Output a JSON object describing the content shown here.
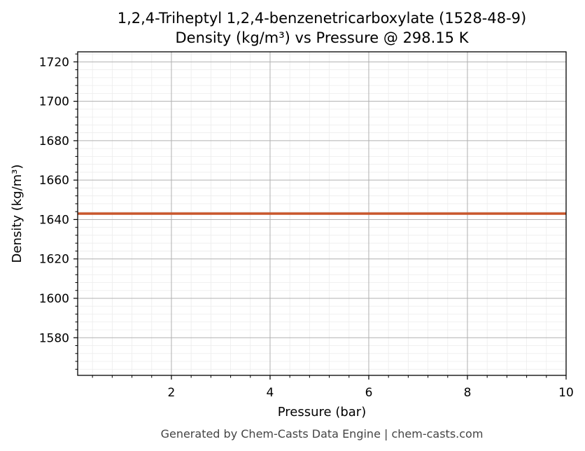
{
  "chart_data": {
    "type": "line",
    "title": "1,2,4-Triheptyl 1,2,4-benzenetricarboxylate (1528-48-9)",
    "subtitle": "Density (kg/m³) vs Pressure @ 298.15 K",
    "xlabel": "Pressure (bar)",
    "ylabel": "Density (kg/m³)",
    "xlim": [
      0.1,
      10
    ],
    "ylim": [
      1560.9,
      1725.1
    ],
    "x_ticks": [
      2,
      4,
      6,
      8,
      10
    ],
    "y_ticks": [
      1580,
      1600,
      1620,
      1640,
      1660,
      1680,
      1700,
      1720
    ],
    "grid": true,
    "series": [
      {
        "color": "#c8562b",
        "x": [
          0.1,
          1,
          2,
          3,
          4,
          5,
          6,
          7,
          8,
          9,
          10
        ],
        "y": [
          1643,
          1643,
          1643,
          1643,
          1643,
          1643,
          1643,
          1643,
          1643,
          1643,
          1643
        ]
      }
    ]
  },
  "footer": "Generated by Chem-Casts Data Engine | chem-casts.com"
}
